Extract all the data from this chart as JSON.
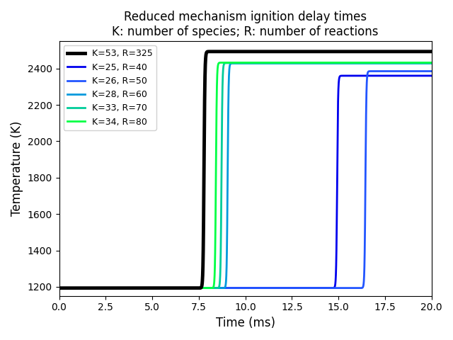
{
  "title": "Reduced mechanism ignition delay times\nK: number of species; R: number of reactions",
  "xlabel": "Time (ms)",
  "ylabel": "Temperature (K)",
  "xlim": [
    0.0,
    20.0
  ],
  "ylim": [
    1150,
    2550
  ],
  "series": [
    {
      "label": "K=53, R=325",
      "color": "#000000",
      "linewidth": 3.5,
      "T_init": 1193,
      "T_final": 2493,
      "t_ignite": 7.78,
      "steepness": 40,
      "zorder": 10
    },
    {
      "label": "K=25, R=40",
      "color": "#0000ee",
      "linewidth": 2.0,
      "T_init": 1193,
      "T_final": 2360,
      "t_ignite": 14.93,
      "steepness": 40,
      "zorder": 3
    },
    {
      "label": "K=26, R=50",
      "color": "#2255ff",
      "linewidth": 2.0,
      "T_init": 1193,
      "T_final": 2385,
      "t_ignite": 16.45,
      "steepness": 40,
      "zorder": 4
    },
    {
      "label": "K=28, R=60",
      "color": "#0099dd",
      "linewidth": 2.0,
      "T_init": 1193,
      "T_final": 2428,
      "t_ignite": 9.05,
      "steepness": 40,
      "zorder": 5
    },
    {
      "label": "K=33, R=70",
      "color": "#00cc99",
      "linewidth": 2.0,
      "T_init": 1193,
      "T_final": 2430,
      "t_ignite": 8.72,
      "steepness": 40,
      "zorder": 6
    },
    {
      "label": "K=34, R=80",
      "color": "#00ff44",
      "linewidth": 2.0,
      "T_init": 1193,
      "T_final": 2432,
      "t_ignite": 8.42,
      "steepness": 40,
      "zorder": 7
    }
  ],
  "legend_order": [
    0,
    1,
    2,
    3,
    4,
    5
  ],
  "background_color": "#ffffff"
}
